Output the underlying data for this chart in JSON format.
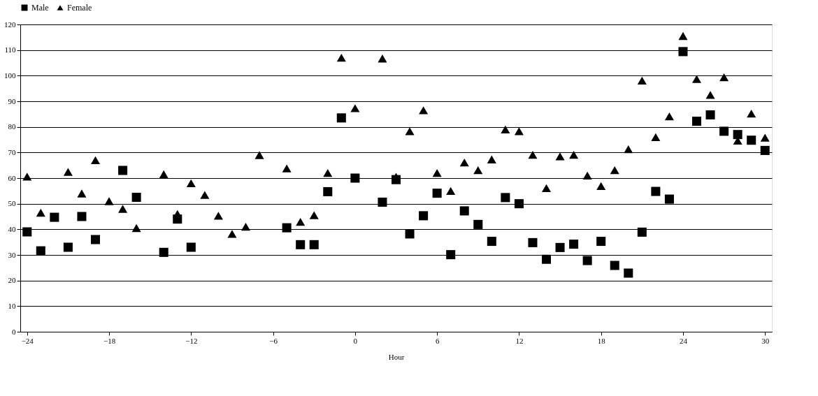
{
  "chart_data": {
    "type": "scatter",
    "xlabel": "Hour",
    "xlim": [
      -24.5,
      30.5
    ],
    "xticks": [
      -24,
      -18,
      -12,
      -6,
      0,
      6,
      12,
      18,
      24,
      30
    ],
    "ylim": [
      0,
      120
    ],
    "yticks": [
      0,
      10,
      20,
      30,
      40,
      50,
      60,
      70,
      80,
      90,
      100,
      110,
      120
    ],
    "grid": "y",
    "legend": "top",
    "series": [
      {
        "name": "Male",
        "color": "#000000",
        "marker": "square",
        "x": [
          -24,
          -23,
          -22,
          -21,
          -20,
          -19,
          -17,
          -16,
          -14,
          -13,
          -12,
          -5,
          -4,
          -3,
          -2,
          -1,
          0,
          2,
          3,
          4,
          5,
          6,
          7,
          8,
          9,
          10,
          11,
          12,
          13,
          14,
          15,
          16,
          17,
          18,
          19,
          20,
          21,
          22,
          23,
          24,
          25,
          26,
          27,
          28,
          29,
          30
        ],
        "values": [
          39,
          31.6,
          44.7,
          33,
          45,
          36,
          63,
          52.5,
          31,
          44,
          33,
          40.6,
          34,
          34,
          54.7,
          83.5,
          60,
          50.6,
          59.4,
          38.2,
          45.3,
          54.1,
          30.1,
          47.2,
          41.9,
          35.3,
          52.4,
          50,
          34.8,
          28.3,
          32.9,
          34.2,
          27.8,
          35.3,
          25.9,
          22.9,
          38.9,
          54.8,
          51.8,
          109.4,
          82.2,
          84.7,
          78.3,
          77,
          74.8,
          70.8
        ]
      },
      {
        "name": "Female",
        "color": "#000000",
        "marker": "triangle",
        "x": [
          -24,
          -23,
          -21,
          -20,
          -19,
          -18,
          -17,
          -16,
          -14,
          -13,
          -12,
          -11,
          -10,
          -9,
          -8,
          -7,
          -5,
          -4,
          -3,
          -2,
          -1,
          0,
          2,
          3,
          4,
          5,
          6,
          7,
          8,
          9,
          10,
          11,
          12,
          13,
          14,
          15,
          16,
          17,
          18,
          19,
          20,
          21,
          22,
          23,
          24,
          25,
          26,
          27,
          28,
          29,
          30
        ],
        "values": [
          60.6,
          46.5,
          62.4,
          54,
          67,
          51,
          48,
          40.5,
          61.5,
          46,
          58,
          53.4,
          45.3,
          38.2,
          41,
          69,
          63.8,
          42.9,
          45.5,
          62,
          107,
          87.3,
          106.7,
          60.5,
          78.3,
          86.5,
          62,
          55,
          66.1,
          63.1,
          67.3,
          79,
          78.3,
          69.1,
          56.1,
          68.5,
          69.1,
          61,
          56.9,
          63.1,
          71.3,
          98.1,
          76,
          84.1,
          115.5,
          98.7,
          92.5,
          99.4,
          74.6,
          85.2,
          75.8
        ]
      }
    ]
  }
}
